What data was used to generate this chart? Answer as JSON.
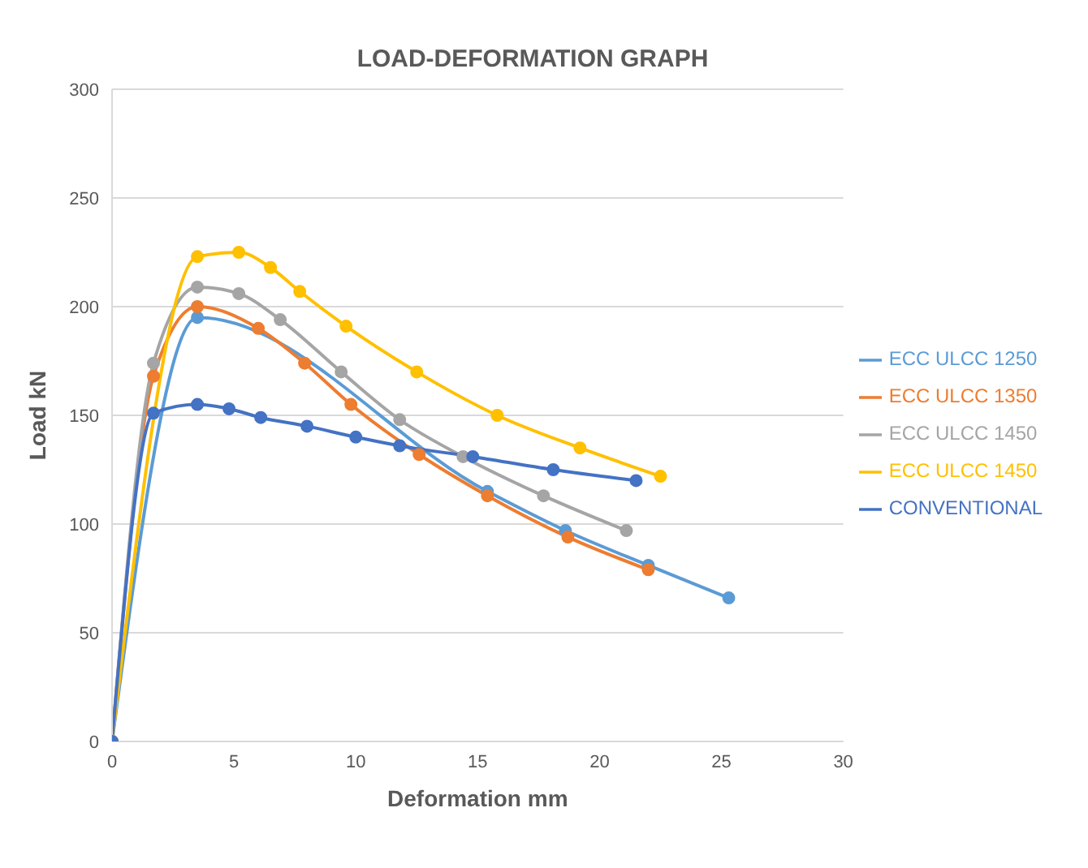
{
  "chart_data": {
    "type": "line",
    "title": "LOAD-DEFORMATION GRAPH",
    "xlabel": "Deformation mm",
    "ylabel": "Load kN",
    "xlim": [
      0,
      30
    ],
    "xticks": [
      0,
      5,
      10,
      15,
      20,
      25,
      30
    ],
    "ylim": [
      0,
      300
    ],
    "yticks": [
      0,
      50,
      100,
      150,
      200,
      250,
      300
    ],
    "grid": "y",
    "legend": "right",
    "marker": "circle",
    "line_style": "solid",
    "series": [
      {
        "name": "ECC ULCC 1250",
        "color": "#5b9bd5",
        "x": [
          0,
          3.5,
          15.4,
          18.6,
          22,
          25.3
        ],
        "values": [
          0,
          195,
          115,
          97,
          81,
          66
        ]
      },
      {
        "name": "ECC ULCC 1350",
        "color": "#ed7d31",
        "x": [
          0,
          1.7,
          3.5,
          6,
          7.9,
          9.8,
          12.6,
          15.4,
          18.7,
          22
        ],
        "values": [
          0,
          168,
          200,
          190,
          174,
          155,
          132,
          113,
          94,
          79
        ]
      },
      {
        "name": "ECC ULCC 1450",
        "color": "#a5a5a5",
        "x": [
          0,
          1.7,
          3.5,
          5.2,
          6.9,
          9.4,
          11.8,
          14.4,
          17.7,
          21.1
        ],
        "values": [
          0,
          174,
          209,
          206,
          194,
          170,
          148,
          131,
          113,
          97
        ]
      },
      {
        "name": "ECC ULCC 1450",
        "color": "#ffc000",
        "x": [
          0,
          3.5,
          5.2,
          6.5,
          7.7,
          9.6,
          12.5,
          15.8,
          19.2,
          22.5
        ],
        "values": [
          0,
          223,
          225,
          218,
          207,
          191,
          170,
          150,
          135,
          122
        ]
      },
      {
        "name": "CONVENTIONAL",
        "color": "#4472c4",
        "x": [
          0,
          1.7,
          3.5,
          4.8,
          6.1,
          8,
          10,
          11.8,
          14.8,
          18.1,
          21.5
        ],
        "values": [
          0,
          151,
          155,
          153,
          149,
          145,
          140,
          136,
          131,
          125,
          120
        ]
      }
    ]
  }
}
